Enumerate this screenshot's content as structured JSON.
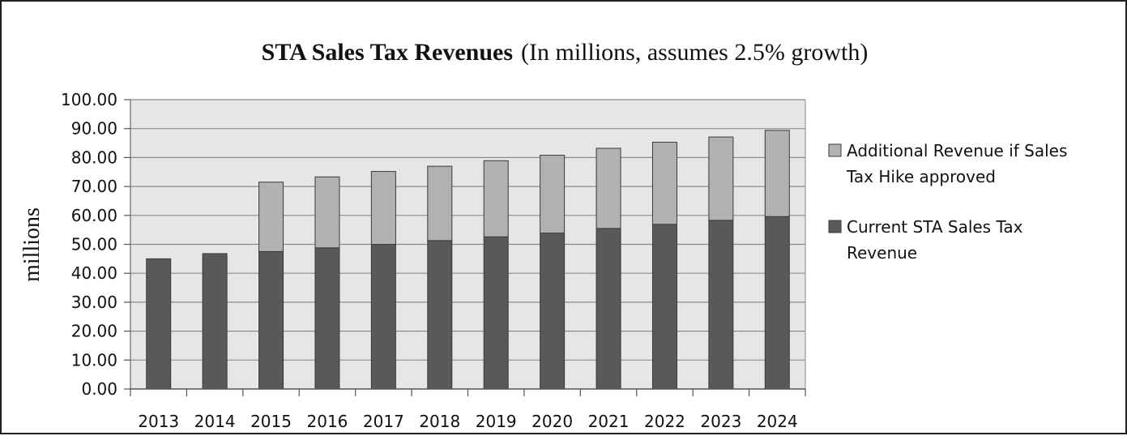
{
  "chart_data": {
    "type": "bar",
    "stacked": true,
    "title": "STA Sales Tax Revenues",
    "subtitle": "(In millions, assumes 2.5% growth)",
    "xlabel": "",
    "ylabel": "millions",
    "ylim": [
      0,
      100
    ],
    "yticks": [
      "0.00",
      "10.00",
      "20.00",
      "30.00",
      "40.00",
      "50.00",
      "60.00",
      "70.00",
      "80.00",
      "90.00",
      "100.00"
    ],
    "grid": true,
    "legend_position": "right",
    "categories": [
      "2013",
      "2014",
      "2015",
      "2016",
      "2017",
      "2018",
      "2019",
      "2020",
      "2021",
      "2022",
      "2023",
      "2024"
    ],
    "series": [
      {
        "name": "Current STA Sales Tax Revenue",
        "color": "#595959",
        "values": [
          45.0,
          46.8,
          47.5,
          48.8,
          50.0,
          51.3,
          52.6,
          53.9,
          55.5,
          56.9,
          58.3,
          59.6
        ]
      },
      {
        "name": "Additional Revenue if Sales Tax Hike approved",
        "color": "#b2b2b2",
        "values": [
          0,
          0,
          24.0,
          24.5,
          25.2,
          25.7,
          26.3,
          26.9,
          27.7,
          28.4,
          28.8,
          29.8
        ]
      }
    ],
    "legend_lines": [
      [
        "Additional Revenue if Sales",
        "Tax Hike approved"
      ],
      [
        "Current STA Sales Tax",
        "Revenue"
      ]
    ],
    "plot_background": "#e6e6e6",
    "grid_color": "#8c8c8c"
  }
}
